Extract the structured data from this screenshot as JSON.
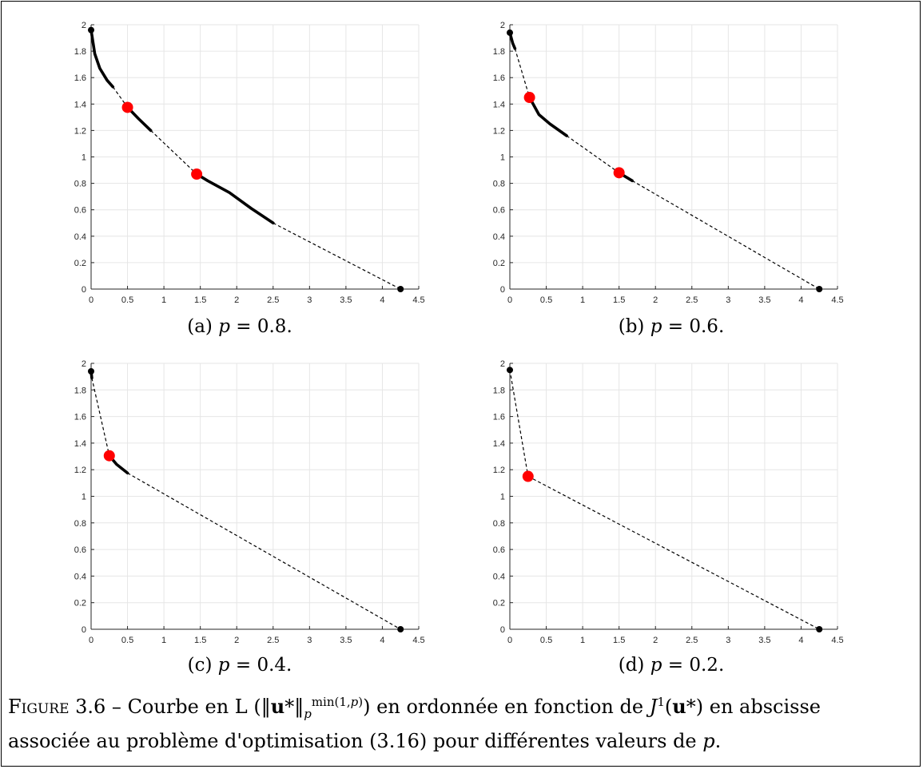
{
  "figure": {
    "caption_label": "Figure 3.6 –",
    "caption_text_1": "Courbe en L",
    "caption_text_2": "en ordonnée en fonction de",
    "caption_text_3": "en abscisse",
    "caption_text_4": "associée au problème d'optimisation (3.16) pour différentes valeurs de",
    "caption_p": "p"
  },
  "colors": {
    "curve": "#000000",
    "highlight": "#ff0000",
    "grid": "#e6e6e6",
    "axis": "#262626"
  },
  "chart_data": [
    {
      "type": "line",
      "subcaption_prefix": "(a)",
      "p_value": "0.8",
      "xlim": [
        0,
        4.5
      ],
      "ylim": [
        0,
        2
      ],
      "xticks": [
        "0",
        "0.5",
        "1",
        "1.5",
        "2",
        "2.5",
        "3",
        "3.5",
        "4",
        "4.5"
      ],
      "yticks": [
        "0",
        "0.2",
        "0.4",
        "0.6",
        "0.8",
        "1",
        "1.2",
        "1.4",
        "1.6",
        "1.8",
        "2"
      ],
      "grid": true,
      "solid_segments": [
        [
          [
            0,
            1.96
          ],
          [
            0.05,
            1.78
          ],
          [
            0.12,
            1.67
          ],
          [
            0.22,
            1.58
          ],
          [
            0.3,
            1.53
          ]
        ],
        [
          [
            0.5,
            1.375
          ],
          [
            0.65,
            1.29
          ],
          [
            0.82,
            1.2
          ]
        ],
        [
          [
            1.45,
            0.87
          ],
          [
            1.6,
            0.82
          ],
          [
            1.9,
            0.73
          ],
          [
            2.2,
            0.61
          ],
          [
            2.5,
            0.5
          ]
        ]
      ],
      "dashed_segments": [
        [
          [
            0.3,
            1.53
          ],
          [
            0.5,
            1.375
          ]
        ],
        [
          [
            0.82,
            1.2
          ],
          [
            1.45,
            0.87
          ]
        ],
        [
          [
            2.5,
            0.5
          ],
          [
            4.25,
            0.0
          ]
        ]
      ],
      "endpoints": [
        [
          0,
          1.96
        ],
        [
          4.25,
          0.0
        ]
      ],
      "highlighted": [
        [
          0.5,
          1.375
        ],
        [
          1.45,
          0.87
        ]
      ]
    },
    {
      "type": "line",
      "subcaption_prefix": "(b)",
      "p_value": "0.6",
      "xlim": [
        0,
        4.5
      ],
      "ylim": [
        0,
        2
      ],
      "xticks": [
        "0",
        "0.5",
        "1",
        "1.5",
        "2",
        "2.5",
        "3",
        "3.5",
        "4",
        "4.5"
      ],
      "yticks": [
        "0",
        "0.2",
        "0.4",
        "0.6",
        "0.8",
        "1",
        "1.2",
        "1.4",
        "1.6",
        "1.8",
        "2"
      ],
      "grid": true,
      "solid_segments": [
        [
          [
            0,
            1.94
          ],
          [
            0.04,
            1.86
          ],
          [
            0.07,
            1.82
          ]
        ],
        [
          [
            0.27,
            1.45
          ],
          [
            0.4,
            1.32
          ],
          [
            0.55,
            1.25
          ],
          [
            0.78,
            1.16
          ]
        ],
        [
          [
            1.5,
            0.88
          ],
          [
            1.68,
            0.82
          ]
        ]
      ],
      "dashed_segments": [
        [
          [
            0.07,
            1.82
          ],
          [
            0.27,
            1.45
          ]
        ],
        [
          [
            0.78,
            1.16
          ],
          [
            1.5,
            0.88
          ]
        ],
        [
          [
            1.68,
            0.82
          ],
          [
            4.25,
            0.0
          ]
        ]
      ],
      "endpoints": [
        [
          0,
          1.94
        ],
        [
          4.25,
          0.0
        ]
      ],
      "highlighted": [
        [
          0.27,
          1.45
        ],
        [
          1.5,
          0.88
        ]
      ]
    },
    {
      "type": "line",
      "subcaption_prefix": "(c)",
      "p_value": "0.4",
      "xlim": [
        0,
        4.5
      ],
      "ylim": [
        0,
        2
      ],
      "xticks": [
        "0",
        "0.5",
        "1",
        "1.5",
        "2",
        "2.5",
        "3",
        "3.5",
        "4",
        "4.5"
      ],
      "yticks": [
        "0",
        "0.2",
        "0.4",
        "0.6",
        "0.8",
        "1",
        "1.2",
        "1.4",
        "1.6",
        "1.8",
        "2"
      ],
      "grid": true,
      "solid_segments": [
        [
          [
            0,
            1.94
          ],
          [
            0.01,
            1.89
          ]
        ],
        [
          [
            0.25,
            1.305
          ],
          [
            0.35,
            1.24
          ],
          [
            0.5,
            1.175
          ]
        ]
      ],
      "dashed_segments": [
        [
          [
            0.01,
            1.89
          ],
          [
            0.25,
            1.305
          ]
        ],
        [
          [
            0.5,
            1.175
          ],
          [
            4.25,
            0.0
          ]
        ]
      ],
      "endpoints": [
        [
          0,
          1.94
        ],
        [
          4.25,
          0.0
        ]
      ],
      "highlighted": [
        [
          0.25,
          1.305
        ]
      ]
    },
    {
      "type": "line",
      "subcaption_prefix": "(d)",
      "p_value": "0.2",
      "xlim": [
        0,
        4.5
      ],
      "ylim": [
        0,
        2
      ],
      "xticks": [
        "0",
        "0.5",
        "1",
        "1.5",
        "2",
        "2.5",
        "3",
        "3.5",
        "4",
        "4.5"
      ],
      "yticks": [
        "0",
        "0.2",
        "0.4",
        "0.6",
        "0.8",
        "1",
        "1.2",
        "1.4",
        "1.6",
        "1.8",
        "2"
      ],
      "grid": true,
      "solid_segments": [],
      "dashed_segments": [
        [
          [
            0,
            1.95
          ],
          [
            0.25,
            1.15
          ]
        ],
        [
          [
            0.25,
            1.15
          ],
          [
            4.25,
            0.0
          ]
        ]
      ],
      "endpoints": [
        [
          0,
          1.95
        ],
        [
          4.25,
          0.0
        ]
      ],
      "highlighted": [
        [
          0.25,
          1.15
        ]
      ]
    }
  ]
}
